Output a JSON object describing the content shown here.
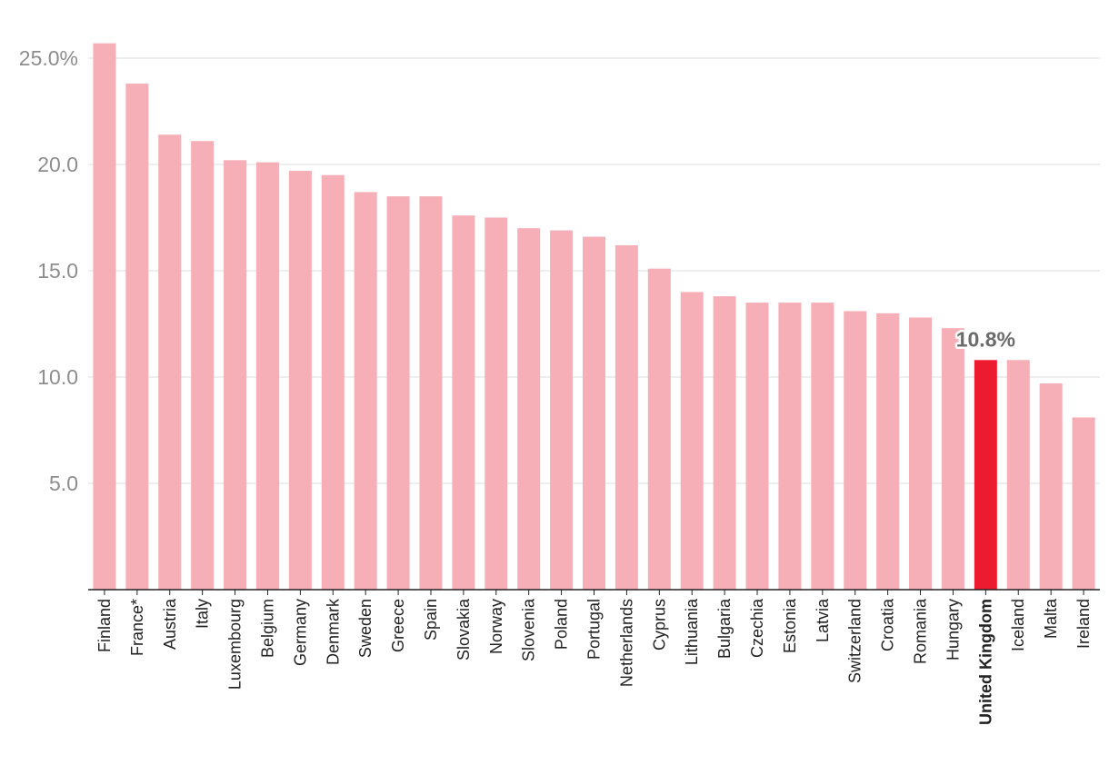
{
  "chart_data": {
    "type": "bar",
    "title": "",
    "xlabel": "",
    "ylabel": "",
    "categories": [
      "Finland",
      "France*",
      "Austria",
      "Italy",
      "Luxembourg",
      "Belgium",
      "Germany",
      "Denmark",
      "Sweden",
      "Greece",
      "Spain",
      "Slovakia",
      "Norway",
      "Slovenia",
      "Poland",
      "Portugal",
      "Netherlands",
      "Cyprus",
      "Lithuania",
      "Bulgaria",
      "Czechia",
      "Estonia",
      "Latvia",
      "Switzerland",
      "Croatia",
      "Romania",
      "Hungary",
      "United Kingdom",
      "Iceland",
      "Malta",
      "Ireland"
    ],
    "values": [
      25.7,
      23.8,
      21.4,
      21.1,
      20.2,
      20.1,
      19.7,
      19.5,
      18.7,
      18.5,
      18.5,
      17.6,
      17.5,
      17.0,
      16.9,
      16.6,
      16.2,
      15.1,
      14.0,
      13.8,
      13.5,
      13.5,
      13.5,
      13.1,
      13.0,
      12.8,
      12.3,
      10.8,
      10.8,
      9.7,
      8.1
    ],
    "ylim": [
      0,
      26
    ],
    "yticks": [
      5.0,
      10.0,
      15.0,
      20.0,
      25.0
    ],
    "ytick_labels": [
      "5.0",
      "10.0",
      "15.0",
      "20.0",
      "25.0%"
    ],
    "grid": true,
    "highlight": {
      "category": "United Kingdom",
      "label": "10.8%"
    },
    "colors": {
      "bar": "#f6aeb7",
      "highlight_bar": "#ed1b30",
      "grid": "#dddddd",
      "axis": "#222222",
      "y_tick_text": "#8d8d8d",
      "x_tick_text": "#222222",
      "data_label_text": "#6b6b6b"
    }
  }
}
